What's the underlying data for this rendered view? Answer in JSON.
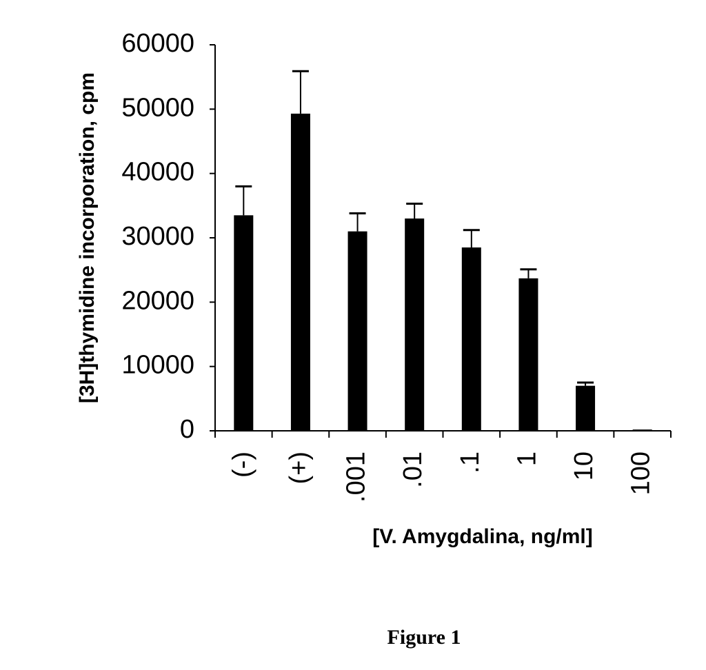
{
  "chart_data": {
    "type": "bar",
    "y_label": "[3H]thymidine incorporation, cpm",
    "x_label": "[V. Amygdalina, ng/ml]",
    "caption": "Figure 1",
    "categories": [
      "(-)",
      "(+)",
      ".001",
      ".01",
      ".1",
      "1",
      "10",
      "100"
    ],
    "values": [
      33500,
      49300,
      31000,
      33000,
      28500,
      23700,
      7000,
      200
    ],
    "errors": [
      4500,
      6600,
      2800,
      2300,
      2700,
      1400,
      500,
      0
    ],
    "color": "#000000",
    "ylim": [
      0,
      60000
    ],
    "yticks": [
      0,
      10000,
      20000,
      30000,
      40000,
      50000,
      60000
    ]
  }
}
